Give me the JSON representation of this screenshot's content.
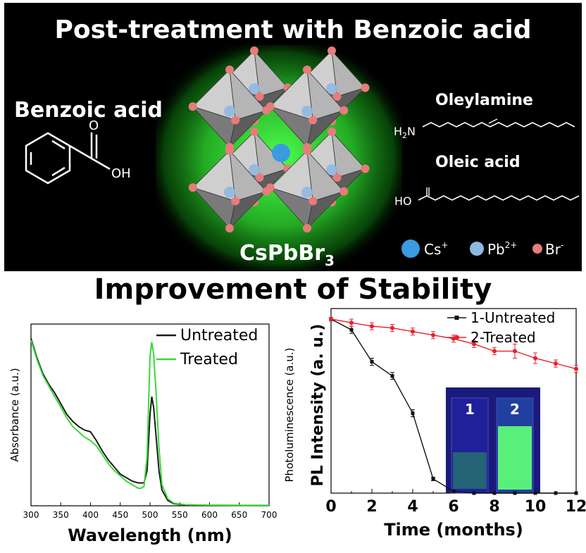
{
  "banner": {
    "title": "Post-treatment with Benzoic acid",
    "benzoic_label": "Benzoic acid",
    "oh_label": "OH",
    "o_label": "O",
    "crystal_label": "CsPbBr",
    "crystal_sub": "3",
    "oleylamine_label": "Oleylamine",
    "h2n_label": "H",
    "h2n_sub": "2",
    "h2n_n": "N",
    "oleic_label": "Oleic acid",
    "ho_label": "HO",
    "legend": [
      {
        "symbol": "Cs",
        "charge": "+",
        "color": "#3a9be0"
      },
      {
        "symbol": "Pb",
        "charge": "2+",
        "color": "#8fb8e0"
      },
      {
        "symbol": "Br",
        "charge": "-",
        "color": "#e87b7b"
      }
    ],
    "colors": {
      "background": "#000000",
      "glow": "#35d135",
      "octahedron": "#a8a8a8"
    }
  },
  "subtitle": "Improvement of  Stability",
  "chart_data": [
    {
      "type": "line",
      "xlabel": "Wavelength (nm)",
      "ylabel": "Absorbance (a.u.)",
      "xlim": [
        300,
        700
      ],
      "x_ticks": [
        "300",
        "350",
        "400",
        "450",
        "500",
        "550",
        "600",
        "650",
        "700"
      ],
      "series": [
        {
          "name": "Untreated",
          "color": "#1a1a1a",
          "x": [
            300,
            310,
            320,
            330,
            340,
            350,
            360,
            370,
            380,
            390,
            400,
            410,
            420,
            430,
            440,
            450,
            460,
            470,
            480,
            485,
            490,
            495,
            500,
            503,
            506,
            510,
            515,
            520,
            530,
            540,
            560,
            600,
            650,
            700
          ],
          "y": [
            0.95,
            0.84,
            0.75,
            0.69,
            0.64,
            0.58,
            0.52,
            0.48,
            0.45,
            0.43,
            0.42,
            0.37,
            0.31,
            0.26,
            0.22,
            0.18,
            0.16,
            0.14,
            0.13,
            0.13,
            0.13,
            0.2,
            0.52,
            0.62,
            0.56,
            0.4,
            0.2,
            0.09,
            0.03,
            0.012,
            0.005,
            0.003,
            0.002,
            0.002
          ]
        },
        {
          "name": "Treated",
          "color": "#39d839",
          "x": [
            300,
            310,
            320,
            330,
            340,
            350,
            360,
            370,
            380,
            390,
            400,
            410,
            420,
            430,
            440,
            450,
            460,
            470,
            480,
            485,
            490,
            495,
            500,
            503,
            506,
            510,
            515,
            520,
            530,
            540,
            560,
            600,
            650,
            700
          ],
          "y": [
            0.94,
            0.83,
            0.74,
            0.68,
            0.62,
            0.56,
            0.5,
            0.45,
            0.42,
            0.39,
            0.37,
            0.34,
            0.29,
            0.24,
            0.2,
            0.17,
            0.14,
            0.12,
            0.1,
            0.1,
            0.11,
            0.28,
            0.85,
            0.93,
            0.86,
            0.65,
            0.33,
            0.12,
            0.04,
            0.015,
            0.006,
            0.004,
            0.003,
            0.003
          ]
        }
      ]
    },
    {
      "type": "line",
      "xlabel": "Time (months)",
      "ylabel_main": "PL Intensity (a. u.)",
      "ylabel_aux": "Photoluminescence (a.u.)",
      "xlim": [
        0,
        12
      ],
      "x_ticks": [
        "0",
        "2",
        "4",
        "6",
        "8",
        "10",
        "12"
      ],
      "ylim": [
        0,
        1
      ],
      "inset_labels": [
        "1",
        "2"
      ],
      "series": [
        {
          "name": "1-Untreated",
          "color": "#111111",
          "x": [
            0,
            1,
            2,
            3,
            4,
            5,
            6,
            7,
            8,
            9,
            10,
            11,
            12
          ],
          "y": [
            0.98,
            0.92,
            0.74,
            0.66,
            0.45,
            0.08,
            0.01,
            0.0,
            0.0,
            0.0,
            0.0,
            0.0,
            0.0
          ],
          "err": [
            0.01,
            0.02,
            0.02,
            0.02,
            0.02,
            0.01,
            0.0,
            0.0,
            0.0,
            0.0,
            0.0,
            0.0,
            0.0
          ]
        },
        {
          "name": "2-Treated",
          "color": "#e8202a",
          "x": [
            0,
            1,
            2,
            3,
            4,
            5,
            6,
            7,
            8,
            9,
            10,
            11,
            12
          ],
          "y": [
            0.98,
            0.96,
            0.94,
            0.93,
            0.91,
            0.89,
            0.87,
            0.84,
            0.8,
            0.8,
            0.76,
            0.73,
            0.7
          ],
          "err": [
            0.01,
            0.02,
            0.02,
            0.02,
            0.02,
            0.02,
            0.02,
            0.02,
            0.02,
            0.04,
            0.03,
            0.02,
            0.02
          ]
        }
      ]
    }
  ]
}
